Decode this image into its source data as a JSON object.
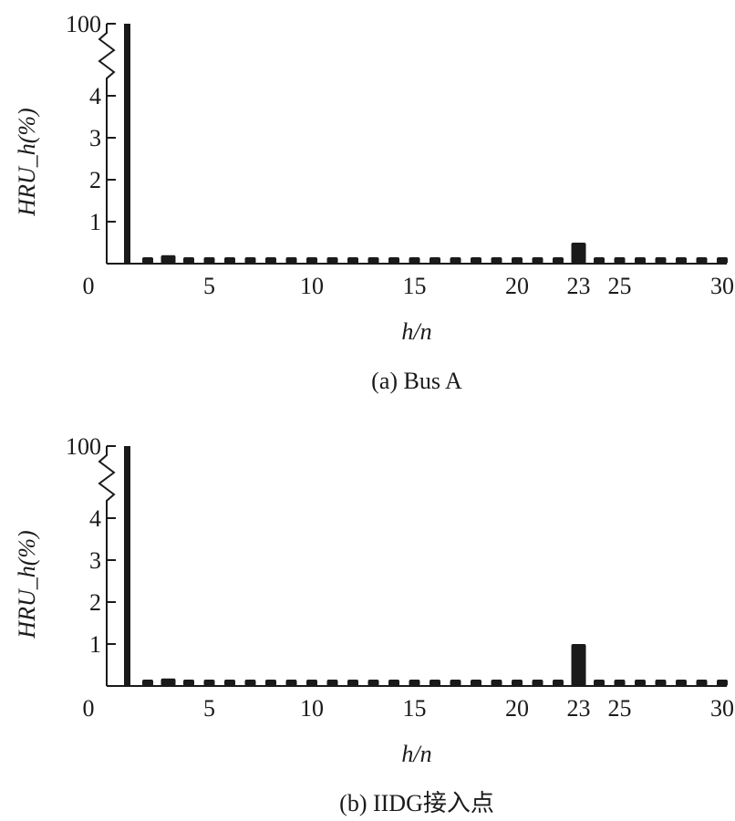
{
  "chart_data": [
    {
      "type": "bar",
      "caption": "(a) Bus A",
      "xlabel": "h/n",
      "ylabel": "HRU_h(%)",
      "x": [
        1,
        2,
        3,
        4,
        5,
        6,
        7,
        8,
        9,
        10,
        11,
        12,
        13,
        14,
        15,
        16,
        17,
        18,
        19,
        20,
        21,
        22,
        23,
        24,
        25,
        26,
        27,
        28,
        29,
        30
      ],
      "values": [
        100,
        0.1,
        0.2,
        0.12,
        0.1,
        0.08,
        0.08,
        0.08,
        0.08,
        0.08,
        0.08,
        0.08,
        0.08,
        0.08,
        0.08,
        0.08,
        0.08,
        0.08,
        0.08,
        0.08,
        0.08,
        0.08,
        0.5,
        0.08,
        0.08,
        0.08,
        0.08,
        0.08,
        0.08,
        0.08
      ],
      "xticks": [
        "0",
        "5",
        "10",
        "15",
        "20",
        "23",
        "25",
        "30"
      ],
      "yticks": [
        "1",
        "2",
        "3",
        "4",
        "100"
      ],
      "ylim": [
        0,
        100
      ],
      "axis_break": "between 4 and 100",
      "grid": false,
      "color": "#1a1a1a"
    },
    {
      "type": "bar",
      "caption": "(b) IIDG接入点",
      "xlabel": "h/n",
      "ylabel": "HRU_h(%)",
      "x": [
        1,
        2,
        3,
        4,
        5,
        6,
        7,
        8,
        9,
        10,
        11,
        12,
        13,
        14,
        15,
        16,
        17,
        18,
        19,
        20,
        21,
        22,
        23,
        24,
        25,
        26,
        27,
        28,
        29,
        30
      ],
      "values": [
        100,
        0.1,
        0.18,
        0.12,
        0.1,
        0.08,
        0.08,
        0.08,
        0.08,
        0.08,
        0.08,
        0.08,
        0.08,
        0.08,
        0.08,
        0.08,
        0.08,
        0.08,
        0.08,
        0.08,
        0.08,
        0.08,
        1.0,
        0.08,
        0.08,
        0.08,
        0.08,
        0.08,
        0.08,
        0.08
      ],
      "xticks": [
        "0",
        "5",
        "10",
        "15",
        "20",
        "23",
        "25",
        "30"
      ],
      "yticks": [
        "1",
        "2",
        "3",
        "4",
        "100"
      ],
      "ylim": [
        0,
        100
      ],
      "axis_break": "between 4 and 100",
      "grid": false,
      "color": "#1a1a1a"
    }
  ]
}
